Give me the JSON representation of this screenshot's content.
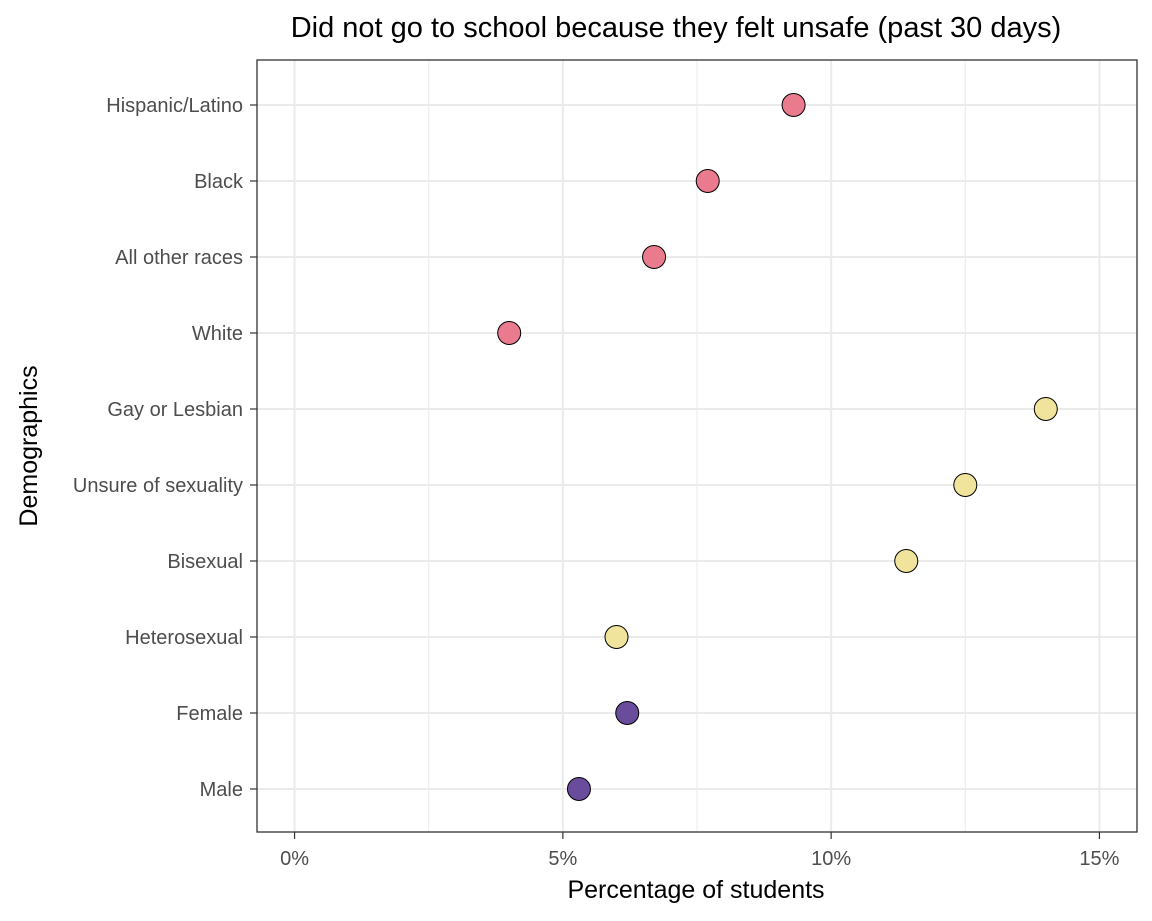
{
  "chart_data": {
    "type": "scatter",
    "title": "Did not go to school because they felt unsafe (past 30 days)",
    "xlabel": "Percentage of students",
    "ylabel": "Demographics",
    "xlim": [
      -0.7,
      15.7
    ],
    "x_ticks": [
      0,
      5,
      10,
      15
    ],
    "x_tick_labels": [
      "0%",
      "5%",
      "10%",
      "15%"
    ],
    "grid": true,
    "categories": [
      "Male",
      "Female",
      "Heterosexual",
      "Bisexual",
      "Unsure of sexuality",
      "Gay or Lesbian",
      "White",
      "All other races",
      "Black",
      "Hispanic/Latino"
    ],
    "points": [
      {
        "category": "Male",
        "value": 5.3,
        "color": "#6a4c9c"
      },
      {
        "category": "Female",
        "value": 6.2,
        "color": "#6a4c9c"
      },
      {
        "category": "Heterosexual",
        "value": 6.0,
        "color": "#f0e39b"
      },
      {
        "category": "Bisexual",
        "value": 11.4,
        "color": "#f0e39b"
      },
      {
        "category": "Unsure of sexuality",
        "value": 12.5,
        "color": "#f0e39b"
      },
      {
        "category": "Gay or Lesbian",
        "value": 14.0,
        "color": "#f0e39b"
      },
      {
        "category": "White",
        "value": 4.0,
        "color": "#ea7a8e"
      },
      {
        "category": "All other races",
        "value": 6.7,
        "color": "#ea7a8e"
      },
      {
        "category": "Black",
        "value": 7.7,
        "color": "#ea7a8e"
      },
      {
        "category": "Hispanic/Latino",
        "value": 9.3,
        "color": "#ea7a8e"
      }
    ]
  }
}
